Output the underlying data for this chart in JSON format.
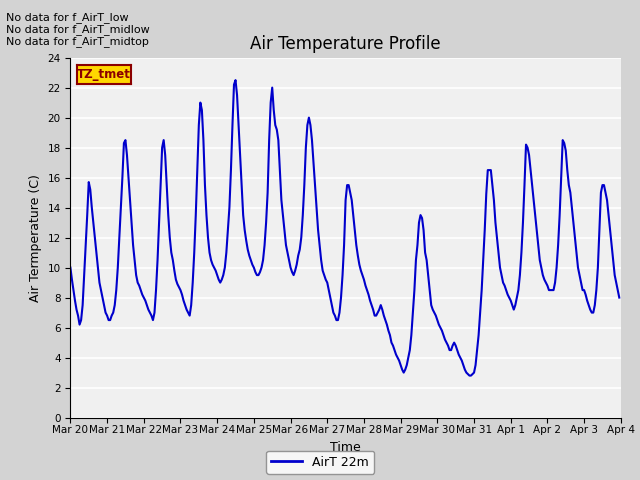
{
  "title": "Air Temperature Profile",
  "xlabel": "Time",
  "ylabel": "Air Termperature (C)",
  "legend_label": "AirT 22m",
  "ylim": [
    0,
    24
  ],
  "yticks": [
    0,
    2,
    4,
    6,
    8,
    10,
    12,
    14,
    16,
    18,
    20,
    22,
    24
  ],
  "line_color": "#0000CC",
  "line_width": 1.5,
  "no_data_texts": [
    "No data for f_AirT_low",
    "No data for f_AirT_midlow",
    "No data for f_AirT_midtop"
  ],
  "tz_label": "TZ_tmet",
  "x_tick_labels": [
    "Mar 20",
    "Mar 21",
    "Mar 22",
    "Mar 23",
    "Mar 24",
    "Mar 25",
    "Mar 26",
    "Mar 27",
    "Mar 28",
    "Mar 29",
    "Mar 30",
    "Mar 31",
    "Apr 1",
    "Apr 2",
    "Apr 3",
    "Apr 4"
  ],
  "temp_values": [
    10.0,
    9.2,
    8.5,
    7.8,
    7.2,
    6.8,
    6.2,
    6.5,
    7.5,
    9.5,
    11.5,
    13.5,
    15.7,
    15.2,
    14.0,
    13.0,
    12.0,
    11.0,
    10.0,
    9.0,
    8.5,
    8.0,
    7.5,
    7.0,
    6.8,
    6.5,
    6.5,
    6.8,
    7.0,
    7.5,
    8.5,
    10.0,
    12.0,
    14.0,
    16.0,
    18.3,
    18.5,
    17.5,
    16.0,
    14.5,
    13.0,
    11.5,
    10.5,
    9.5,
    9.0,
    8.8,
    8.5,
    8.2,
    8.0,
    7.8,
    7.5,
    7.2,
    7.0,
    6.8,
    6.5,
    7.0,
    8.5,
    10.5,
    13.0,
    15.5,
    18.0,
    18.5,
    17.5,
    15.5,
    13.5,
    12.0,
    11.0,
    10.5,
    9.8,
    9.2,
    8.9,
    8.7,
    8.5,
    8.2,
    7.8,
    7.5,
    7.2,
    7.0,
    6.8,
    7.5,
    9.0,
    11.0,
    13.5,
    16.5,
    19.5,
    21.0,
    20.5,
    18.5,
    15.5,
    13.5,
    12.0,
    11.0,
    10.5,
    10.2,
    10.0,
    9.8,
    9.5,
    9.2,
    9.0,
    9.2,
    9.5,
    10.0,
    11.0,
    12.5,
    14.0,
    16.5,
    19.5,
    22.2,
    22.5,
    21.5,
    19.5,
    17.5,
    15.5,
    13.5,
    12.5,
    11.8,
    11.2,
    10.8,
    10.5,
    10.2,
    10.0,
    9.7,
    9.5,
    9.5,
    9.7,
    10.0,
    10.5,
    11.5,
    13.0,
    15.0,
    18.5,
    21.0,
    22.0,
    20.5,
    19.5,
    19.2,
    18.5,
    16.5,
    14.5,
    13.5,
    12.5,
    11.5,
    11.0,
    10.5,
    10.0,
    9.7,
    9.5,
    9.8,
    10.2,
    10.8,
    11.2,
    12.0,
    13.5,
    15.5,
    18.0,
    19.5,
    20.0,
    19.5,
    18.5,
    17.0,
    15.5,
    14.0,
    12.5,
    11.5,
    10.5,
    9.8,
    9.5,
    9.2,
    9.0,
    8.5,
    8.0,
    7.5,
    7.0,
    6.8,
    6.5,
    6.5,
    7.0,
    8.0,
    9.5,
    11.5,
    14.5,
    15.5,
    15.5,
    15.0,
    14.5,
    13.5,
    12.5,
    11.5,
    10.8,
    10.2,
    9.8,
    9.5,
    9.2,
    8.8,
    8.5,
    8.2,
    7.8,
    7.5,
    7.2,
    6.8,
    6.8,
    7.0,
    7.2,
    7.5,
    7.2,
    6.8,
    6.5,
    6.2,
    5.8,
    5.5,
    5.0,
    4.8,
    4.5,
    4.2,
    4.0,
    3.8,
    3.5,
    3.2,
    3.0,
    3.2,
    3.5,
    4.0,
    4.5,
    5.5,
    7.0,
    8.5,
    10.5,
    11.5,
    13.0,
    13.5,
    13.3,
    12.5,
    11.0,
    10.5,
    9.5,
    8.5,
    7.5,
    7.2,
    7.0,
    6.8,
    6.5,
    6.2,
    6.0,
    5.8,
    5.5,
    5.2,
    5.0,
    4.8,
    4.5,
    4.5,
    4.8,
    5.0,
    4.8,
    4.5,
    4.2,
    4.0,
    3.8,
    3.5,
    3.2,
    3.0,
    2.9,
    2.8,
    2.8,
    2.9,
    3.0,
    3.5,
    4.5,
    5.5,
    7.0,
    8.5,
    10.5,
    12.5,
    14.9,
    16.5,
    16.5,
    16.5,
    15.5,
    14.5,
    13.0,
    12.0,
    11.0,
    10.0,
    9.5,
    9.0,
    8.8,
    8.5,
    8.2,
    8.0,
    7.8,
    7.5,
    7.2,
    7.5,
    8.0,
    8.5,
    9.5,
    11.0,
    13.0,
    15.5,
    18.2,
    18.0,
    17.5,
    16.5,
    15.5,
    14.5,
    13.5,
    12.5,
    11.5,
    10.5,
    10.0,
    9.5,
    9.2,
    9.0,
    8.8,
    8.5,
    8.5,
    8.5,
    8.5,
    9.0,
    10.0,
    11.5,
    13.5,
    16.0,
    18.5,
    18.3,
    17.8,
    16.5,
    15.5,
    15.0,
    14.0,
    13.0,
    12.0,
    11.0,
    10.0,
    9.5,
    9.0,
    8.5,
    8.5,
    8.2,
    7.8,
    7.5,
    7.2,
    7.0,
    7.0,
    7.5,
    8.5,
    10.0,
    12.5,
    15.0,
    15.5,
    15.5,
    15.0,
    14.5,
    13.5,
    12.5,
    11.5,
    10.5,
    9.5,
    9.0,
    8.5,
    8.0
  ]
}
